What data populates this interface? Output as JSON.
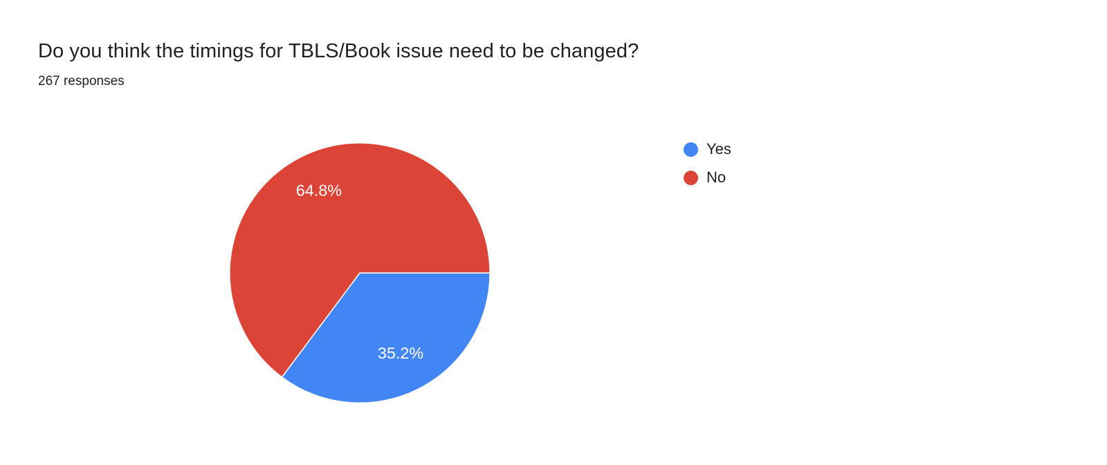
{
  "header": {
    "title": "Do you think the timings for TBLS/Book issue need to be changed?",
    "responses_count": "267 responses"
  },
  "legend": {
    "position": "right",
    "items": [
      {
        "label": "Yes",
        "color": "#4285f4"
      },
      {
        "label": "No",
        "color": "#db4437"
      }
    ]
  },
  "chart_data": {
    "type": "pie",
    "title": "Do you think the timings for TBLS/Book issue need to be changed?",
    "subtitle": "267 responses",
    "total_responses": 267,
    "categories": [
      "Yes",
      "No"
    ],
    "values": [
      35.2,
      64.8
    ],
    "unit": "percent",
    "start_angle_deg": 90,
    "direction": "clockwise",
    "legend_position": "right",
    "slice_label_color": "#ffffff",
    "series": [
      {
        "label": "Yes",
        "value": 35.2,
        "display": "35.2%",
        "color": "#4285f4"
      },
      {
        "label": "No",
        "value": 64.8,
        "display": "64.8%",
        "color": "#db4437"
      }
    ]
  },
  "colors": {
    "background": "#ffffff",
    "title_text": "#202124",
    "yes_slice": "#4285f4",
    "no_slice": "#db4437"
  }
}
